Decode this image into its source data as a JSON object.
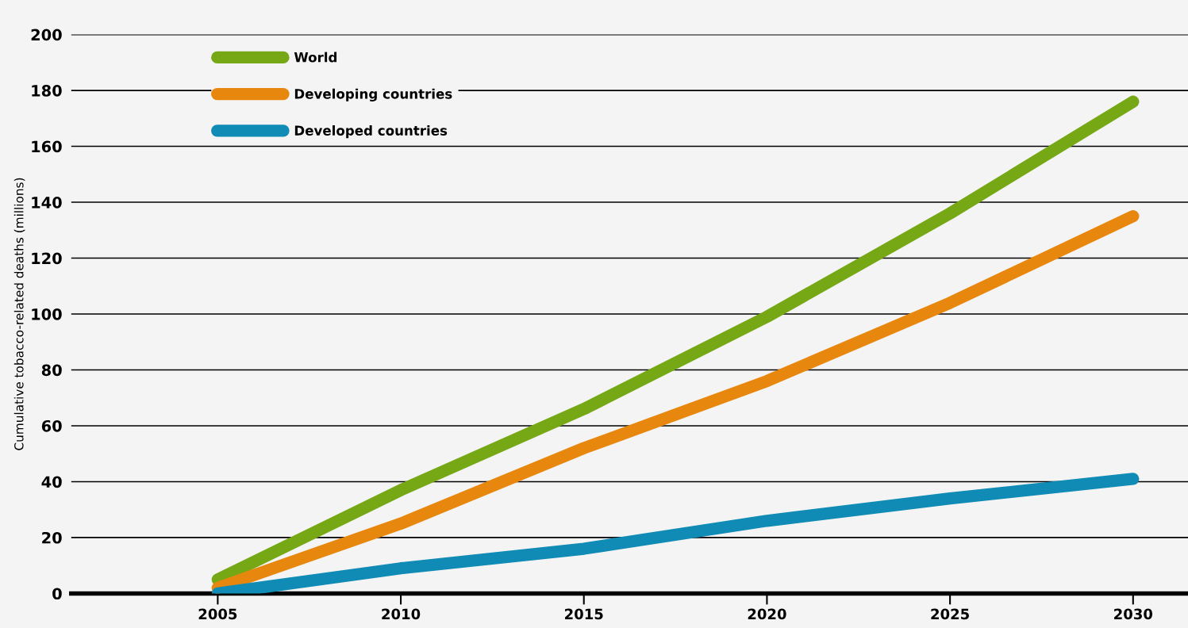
{
  "chart_data": {
    "type": "line",
    "ylabel": "Cumulative tobacco-related deaths (millions)",
    "x": [
      2005,
      2010,
      2015,
      2020,
      2025,
      2030
    ],
    "series": [
      {
        "name": "World",
        "color": "#76a816",
        "values": [
          5,
          37,
          66,
          99,
          136,
          176
        ]
      },
      {
        "name": "Developing countries",
        "color": "#e8870e",
        "values": [
          2,
          25,
          52,
          76,
          104,
          135
        ]
      },
      {
        "name": "Developed countries",
        "color": "#0f8bb5",
        "values": [
          0,
          9,
          16,
          26,
          34,
          41
        ]
      }
    ],
    "xlim": [
      2001,
      2031.5
    ],
    "xticks": [
      2005,
      2010,
      2015,
      2020,
      2025,
      2030
    ],
    "ylim": [
      0,
      200
    ],
    "yticks": [
      0,
      20,
      40,
      60,
      80,
      100,
      120,
      140,
      160,
      180,
      200
    ],
    "grid": "y",
    "legend": "top left",
    "marker": "none",
    "line_style": "solid"
  }
}
